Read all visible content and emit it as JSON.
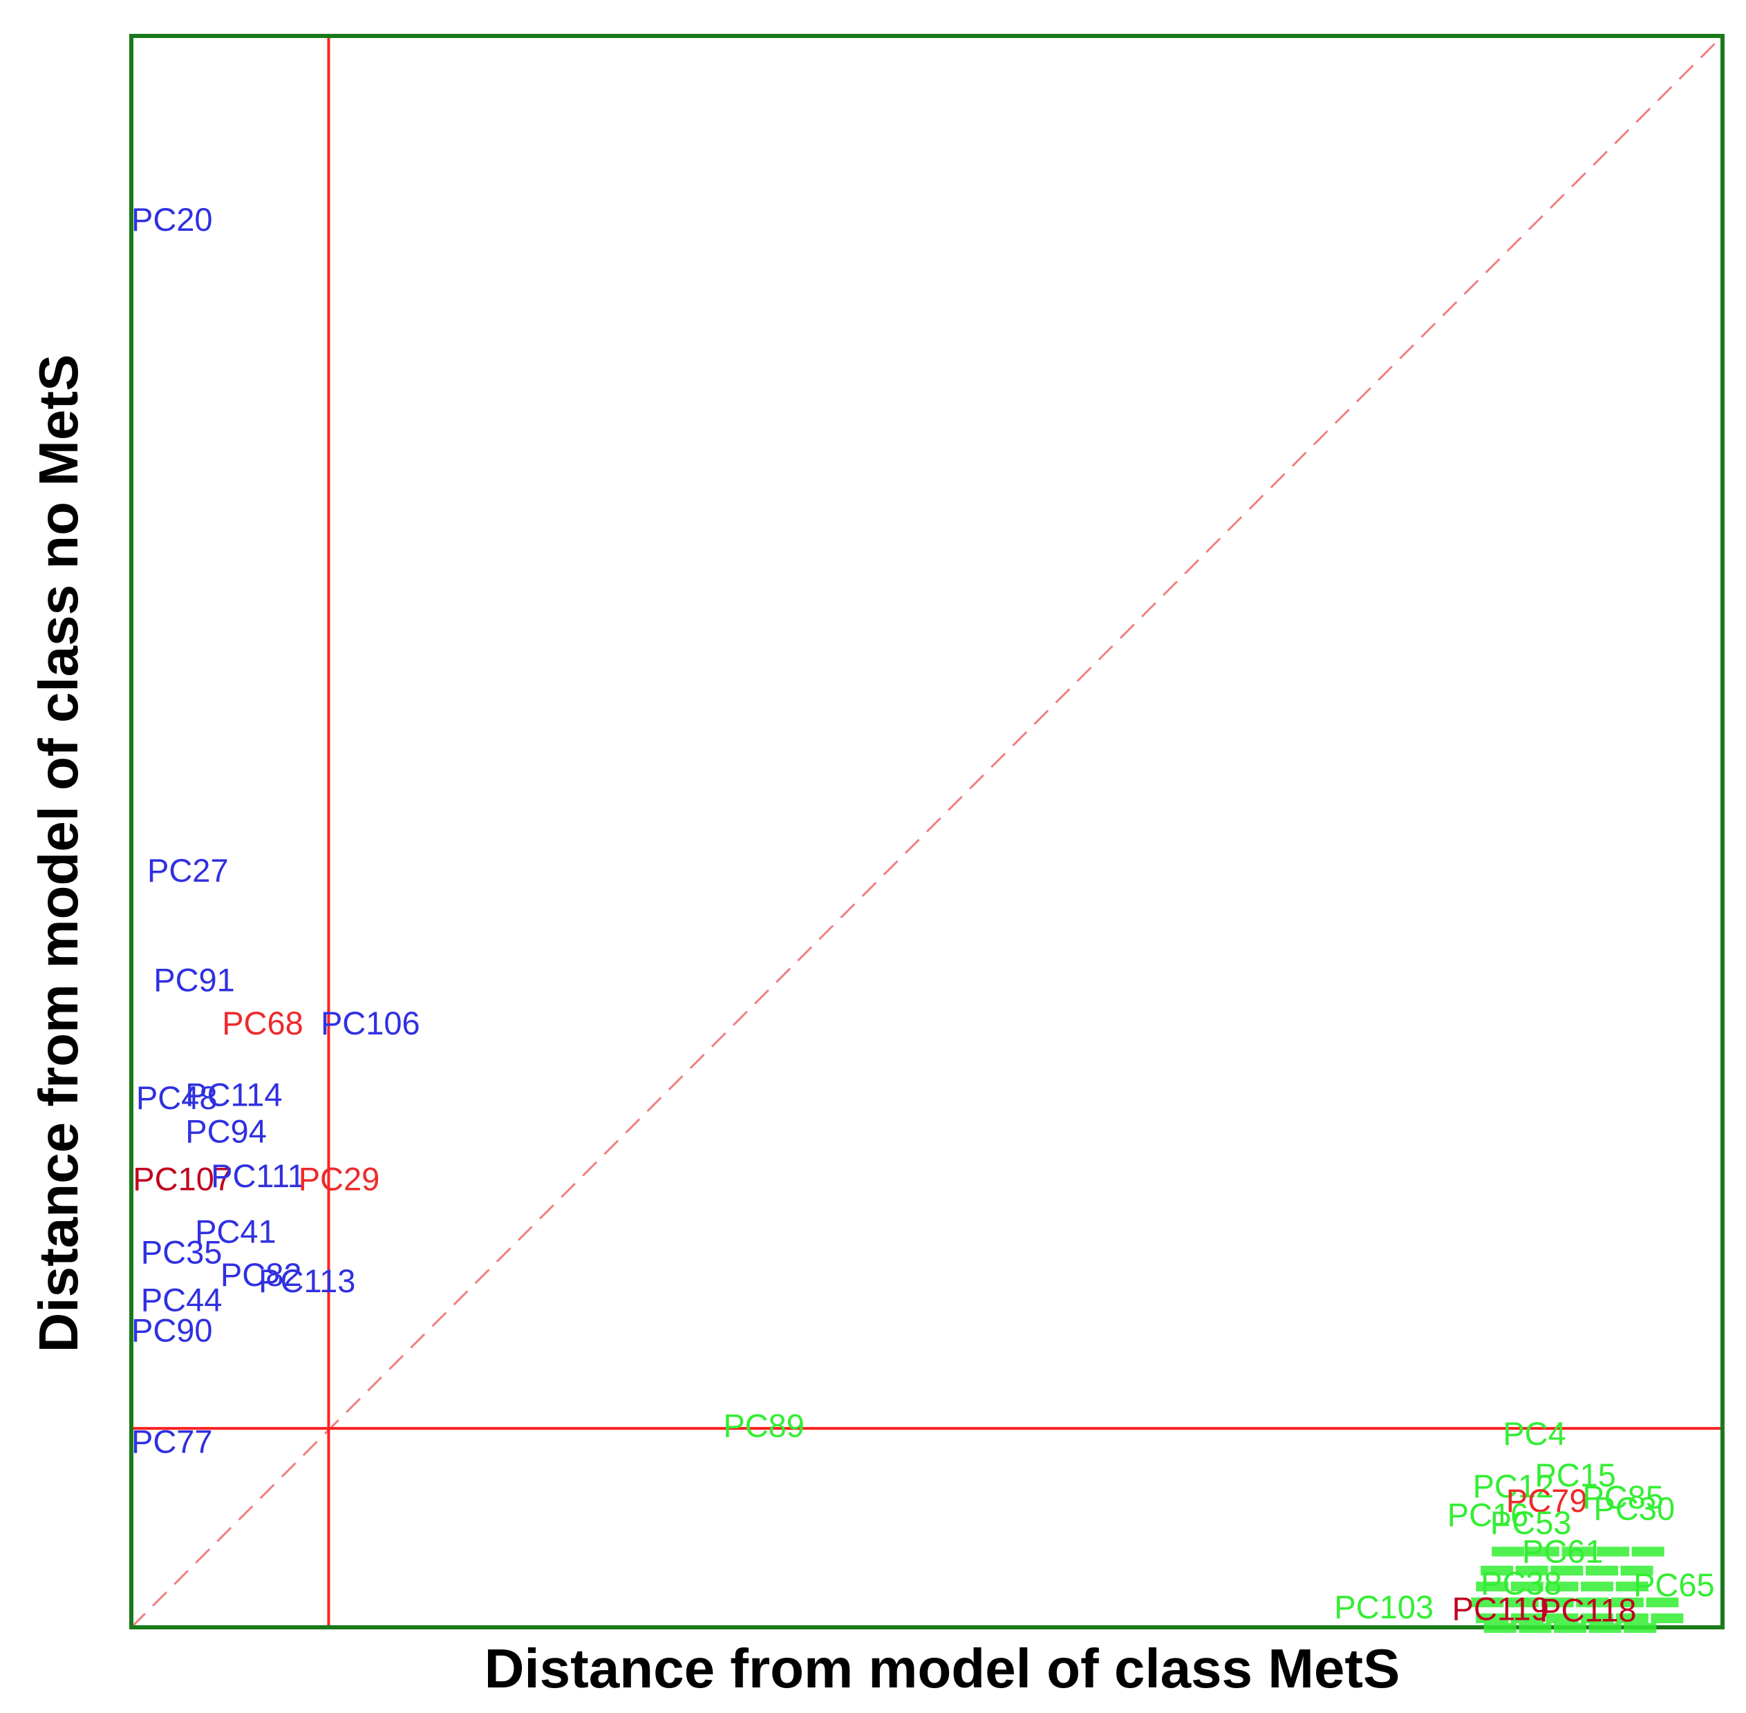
{
  "chart_data": {
    "type": "scatter",
    "title": "",
    "xlabel": "Distance from model of class MetS",
    "ylabel": "Distance from model of class no MetS",
    "xlim": [
      0,
      1
    ],
    "ylim": [
      0,
      1
    ],
    "grid": false,
    "legend": "none",
    "threshold_x": 0.124,
    "threshold_y": 0.125,
    "diagonal": true,
    "colors": {
      "frame": "#1a7a1a",
      "threshold": "#ff2020",
      "diagonal": "#f08080",
      "blue": "#3030e0",
      "red": "#ee2a2a",
      "green": "#33ee33",
      "darkred": "#c00020"
    },
    "points": [
      {
        "label": "PC20",
        "x": 0.0,
        "y": 0.883,
        "color": "blue"
      },
      {
        "label": "PC27",
        "x": 0.01,
        "y": 0.474,
        "color": "blue"
      },
      {
        "label": "PC91",
        "x": 0.014,
        "y": 0.405,
        "color": "blue"
      },
      {
        "label": "PC68",
        "x": 0.057,
        "y": 0.378,
        "color": "red"
      },
      {
        "label": "PC106",
        "x": 0.119,
        "y": 0.378,
        "color": "blue"
      },
      {
        "label": "PC48",
        "x": 0.003,
        "y": 0.331,
        "color": "blue"
      },
      {
        "label": "PC114",
        "x": 0.034,
        "y": 0.333,
        "color": "blue"
      },
      {
        "label": "PC94",
        "x": 0.034,
        "y": 0.31,
        "color": "blue"
      },
      {
        "label": "PC107",
        "x": 0.001,
        "y": 0.28,
        "color": "darkred"
      },
      {
        "label": "PC111",
        "x": 0.05,
        "y": 0.282,
        "color": "blue"
      },
      {
        "label": "PC29",
        "x": 0.105,
        "y": 0.28,
        "color": "red"
      },
      {
        "label": "PC41",
        "x": 0.04,
        "y": 0.247,
        "color": "blue"
      },
      {
        "label": "PC35",
        "x": 0.006,
        "y": 0.234,
        "color": "blue"
      },
      {
        "label": "PC82",
        "x": 0.056,
        "y": 0.22,
        "color": "blue"
      },
      {
        "label": "PC113",
        "x": 0.08,
        "y": 0.216,
        "color": "blue"
      },
      {
        "label": "PC44",
        "x": 0.006,
        "y": 0.204,
        "color": "blue"
      },
      {
        "label": "PC90",
        "x": 0.0,
        "y": 0.185,
        "color": "blue"
      },
      {
        "label": "PC77",
        "x": 0.0,
        "y": 0.115,
        "color": "blue"
      },
      {
        "label": "PC89",
        "x": 0.372,
        "y": 0.125,
        "color": "green"
      },
      {
        "label": "PC4",
        "x": 0.862,
        "y": 0.12,
        "color": "green"
      },
      {
        "label": "PC15",
        "x": 0.882,
        "y": 0.094,
        "color": "green"
      },
      {
        "label": "PC12",
        "x": 0.843,
        "y": 0.087,
        "color": "green"
      },
      {
        "label": "PC79",
        "x": 0.864,
        "y": 0.078,
        "color": "red"
      },
      {
        "label": "PC85",
        "x": 0.912,
        "y": 0.08,
        "color": "green"
      },
      {
        "label": "PC30",
        "x": 0.919,
        "y": 0.073,
        "color": "green"
      },
      {
        "label": "PC16",
        "x": 0.827,
        "y": 0.069,
        "color": "green"
      },
      {
        "label": "PC53",
        "x": 0.854,
        "y": 0.064,
        "color": "green"
      },
      {
        "label": "PC61",
        "x": 0.874,
        "y": 0.046,
        "color": "green"
      },
      {
        "label": "PC65",
        "x": 0.944,
        "y": 0.025,
        "color": "green"
      },
      {
        "label": "PC38",
        "x": 0.848,
        "y": 0.026,
        "color": "green"
      },
      {
        "label": "PC103",
        "x": 0.756,
        "y": 0.011,
        "color": "green"
      },
      {
        "label": "PC119",
        "x": 0.83,
        "y": 0.01,
        "color": "darkred"
      },
      {
        "label": "PC118",
        "x": 0.885,
        "y": 0.009,
        "color": "darkred"
      }
    ]
  }
}
